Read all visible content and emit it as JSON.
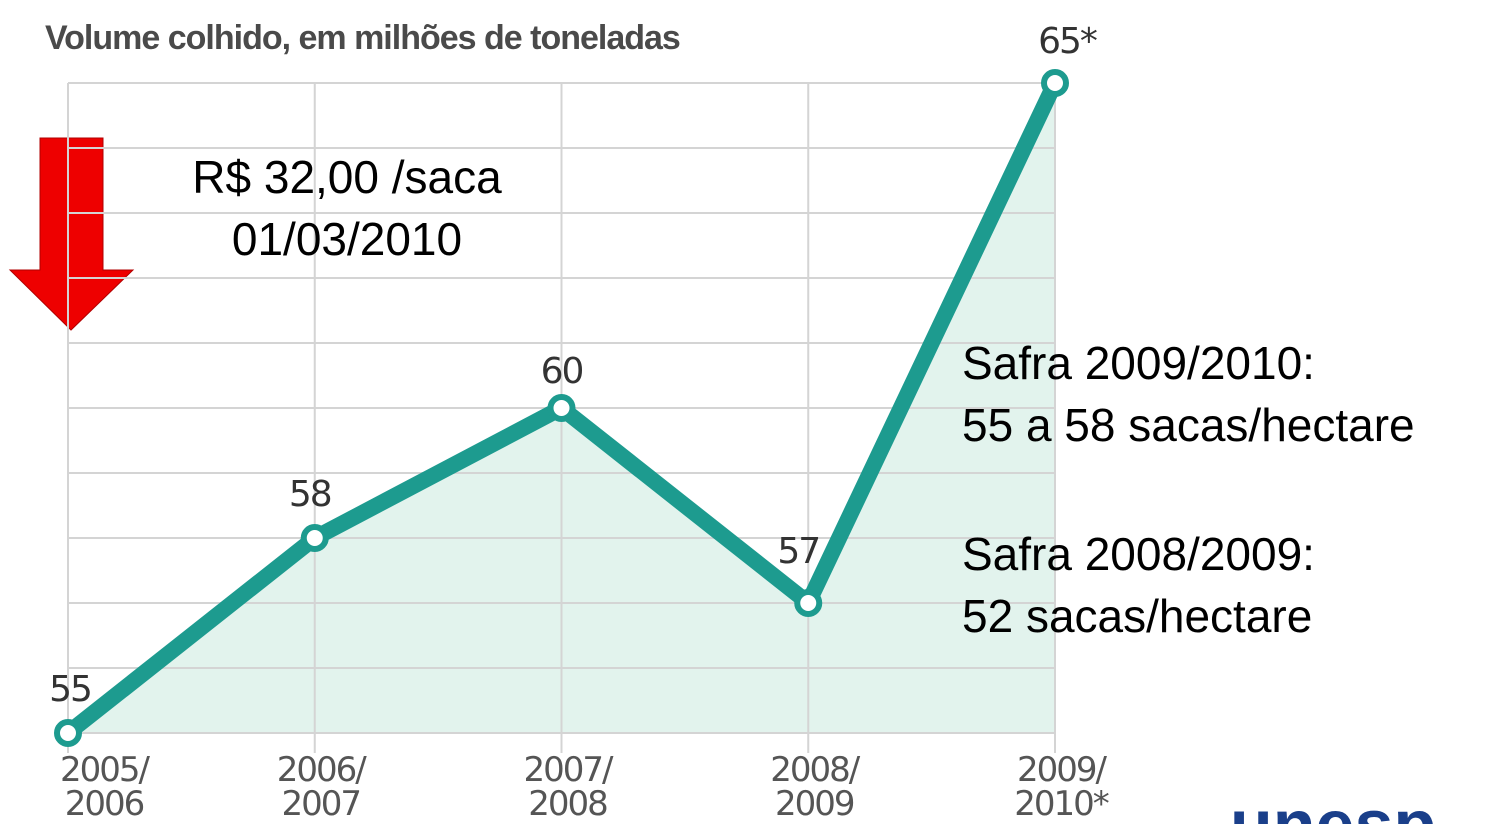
{
  "chart_data": {
    "type": "line",
    "title": "Volume colhido, em milhões de toneladas",
    "categories": [
      [
        "2005/",
        "2006"
      ],
      [
        "2006/",
        "2007"
      ],
      [
        "2007/",
        "2008"
      ],
      [
        "2008/",
        "2009"
      ],
      [
        "2009/",
        "2010*"
      ]
    ],
    "values": [
      55,
      58,
      60,
      57,
      65
    ],
    "value_labels": [
      "55",
      "58",
      "60",
      "57",
      "65*"
    ],
    "color": "#1d9b8f",
    "area_color": "#e2f3ed",
    "ylim": [
      55,
      65
    ],
    "yticks": [
      55,
      56,
      57,
      58,
      59,
      60,
      61,
      62,
      63,
      64,
      65
    ],
    "grid": true,
    "annotations": [
      [
        "R$ 32,00 /saca",
        "01/03/2010"
      ],
      [
        "Safra 2009/2010:",
        "55 a 58 sacas/hectare"
      ],
      [
        "Safra 2008/2009:",
        "52 sacas/hectare"
      ]
    ],
    "logo": "unesp"
  }
}
